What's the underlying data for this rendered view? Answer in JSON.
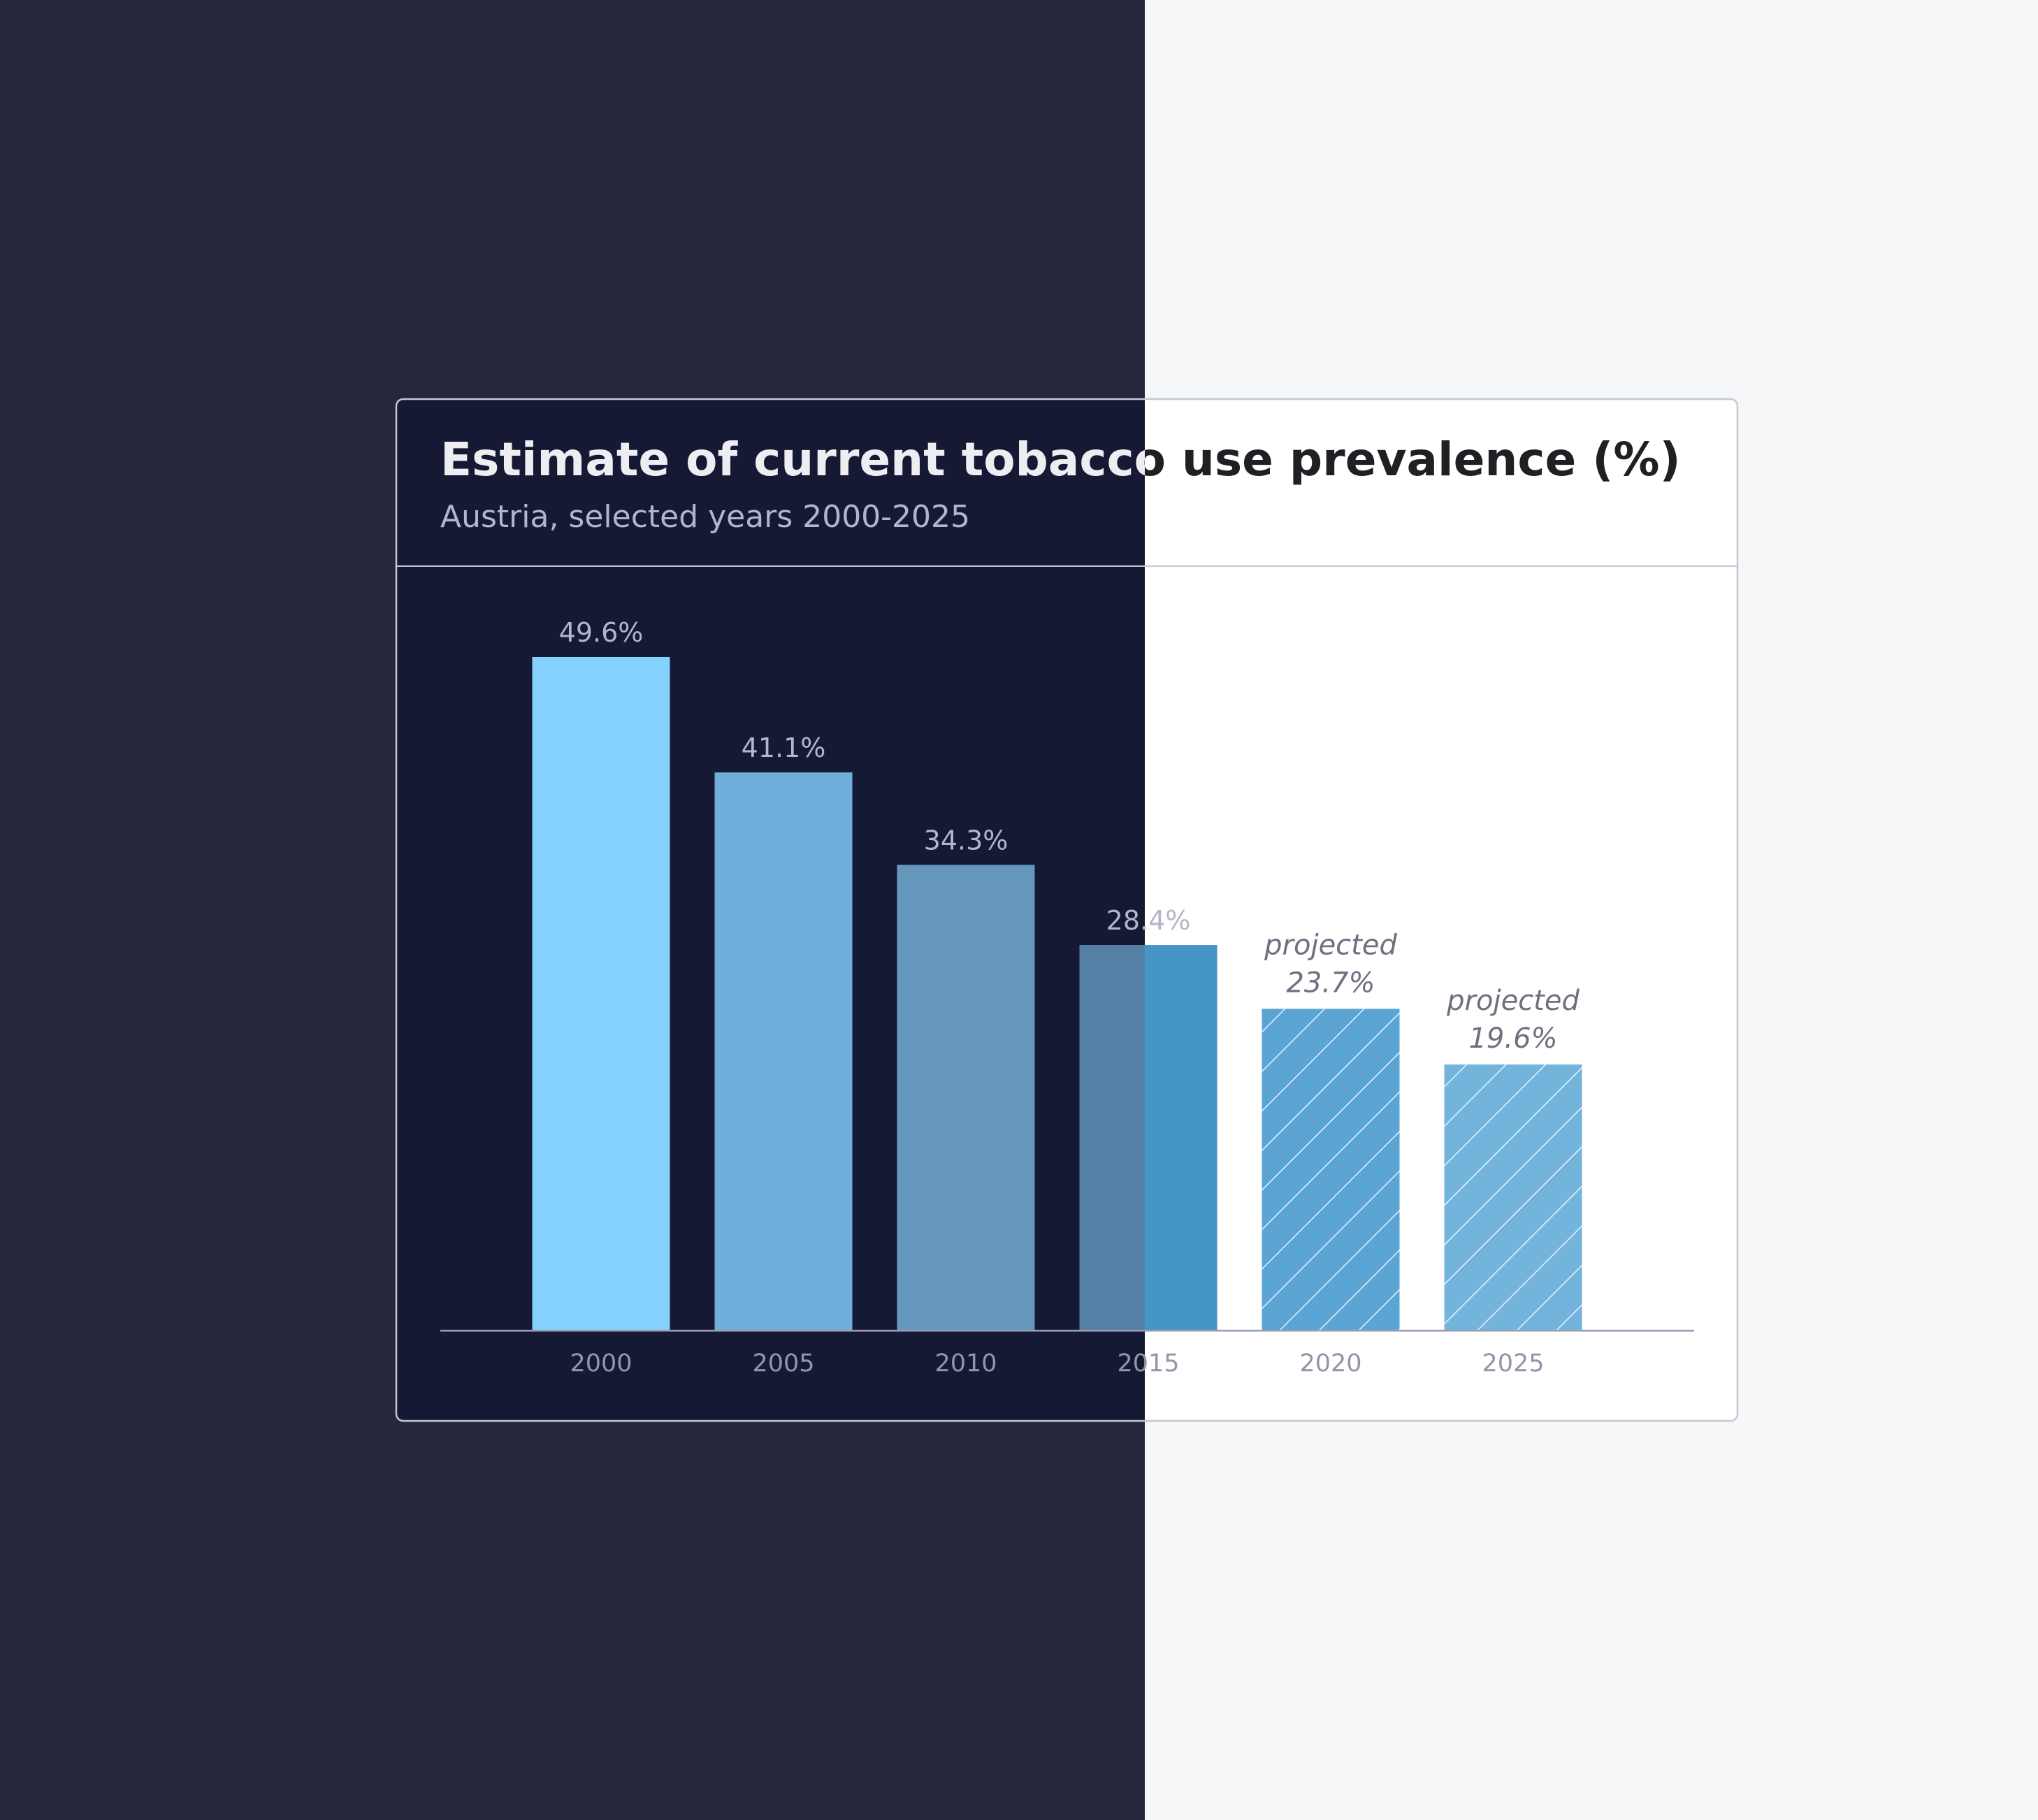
{
  "colors": {
    "page_dark": "#24273d",
    "page_light": "#f6f7f9",
    "card_dark": "#161934",
    "card_light": "#ffffff",
    "card_border": "#c5c8d2",
    "title_dark": "#ededf2",
    "title_light": "#1f1f24",
    "subtitle": "#b3b6c8",
    "value_label": "#b3b6c8",
    "projected_label": "#6e7080",
    "tick": "#9396a6",
    "axis": "#9a9db0"
  },
  "chart_data": {
    "type": "bar",
    "title": "Estimate of current tobacco use prevalence (%)",
    "subtitle": "Austria, selected years 2000-2025",
    "categories": [
      "2000",
      "2005",
      "2010",
      "2015",
      "2020",
      "2025"
    ],
    "values": [
      49.6,
      41.1,
      34.3,
      28.4,
      23.7,
      19.6
    ],
    "value_labels": [
      "49.6%",
      "41.1%",
      "34.3%",
      "28.4%",
      "23.7%",
      "19.6%"
    ],
    "projected": [
      false,
      false,
      false,
      false,
      true,
      true
    ],
    "projected_label": "projected",
    "bar_colors": [
      "#84d1fd",
      "#6fadda",
      "#6597bd",
      "#557fa5",
      "#5aa5d4",
      "#72b4db"
    ],
    "bar_colors_on_light": [
      "#84d1fd",
      "#6fadda",
      "#6597bd",
      "#4596c7",
      "#5aa5d4",
      "#72b4db"
    ],
    "xlabel": "",
    "ylabel": "",
    "ylim": [
      0,
      50
    ],
    "grid": false,
    "legend": "none"
  }
}
